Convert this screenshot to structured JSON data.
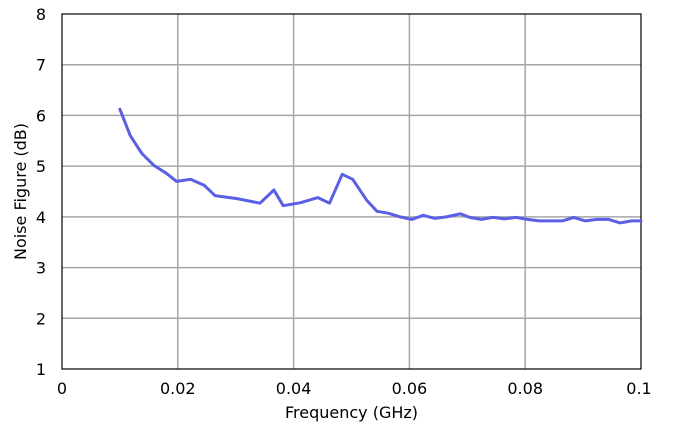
{
  "chart_data": {
    "type": "line",
    "title": "",
    "xlabel": "Frequency (GHz)",
    "ylabel": "Noise Figure (dB)",
    "xlim": [
      0,
      0.1
    ],
    "ylim": [
      1,
      8
    ],
    "grid": true,
    "legend": "none",
    "x_ticks": [
      0,
      0.02,
      0.04,
      0.06,
      0.08,
      0.1
    ],
    "x_tick_labels": [
      "0",
      "0.02",
      "0.04",
      "0.06",
      "0.08",
      "0.1"
    ],
    "y_ticks": [
      1,
      2,
      3,
      4,
      5,
      6,
      7,
      8
    ],
    "y_tick_labels": [
      "1",
      "2",
      "3",
      "4",
      "5",
      "6",
      "7",
      "8"
    ],
    "colors": {
      "line": "#5a5fe6",
      "grid": "#a6a6a6",
      "axes": "#000000"
    },
    "series": [
      {
        "x": [
          0.01,
          0.0118,
          0.0138,
          0.0158,
          0.018,
          0.0198,
          0.0222,
          0.0246,
          0.0264,
          0.0302,
          0.0342,
          0.0366,
          0.0382,
          0.0412,
          0.0442,
          0.0462,
          0.0484,
          0.0502,
          0.0526,
          0.0544,
          0.0564,
          0.0584,
          0.0604,
          0.0624,
          0.0644,
          0.0664,
          0.0688,
          0.0704,
          0.0724,
          0.0744,
          0.0764,
          0.0784,
          0.0804,
          0.0824,
          0.0844,
          0.0864,
          0.0884,
          0.0904,
          0.0924,
          0.0944,
          0.0964,
          0.0984,
          0.1
        ],
        "y": [
          6.12,
          5.6,
          5.25,
          5.02,
          4.86,
          4.7,
          4.74,
          4.62,
          4.42,
          4.36,
          4.27,
          4.53,
          4.22,
          4.28,
          4.38,
          4.27,
          4.84,
          4.74,
          4.33,
          4.11,
          4.07,
          4.0,
          3.95,
          4.03,
          3.97,
          4.0,
          4.06,
          3.99,
          3.95,
          3.99,
          3.96,
          3.99,
          3.95,
          3.92,
          3.92,
          3.92,
          3.99,
          3.92,
          3.95,
          3.95,
          3.88,
          3.92,
          3.92
        ]
      }
    ]
  }
}
